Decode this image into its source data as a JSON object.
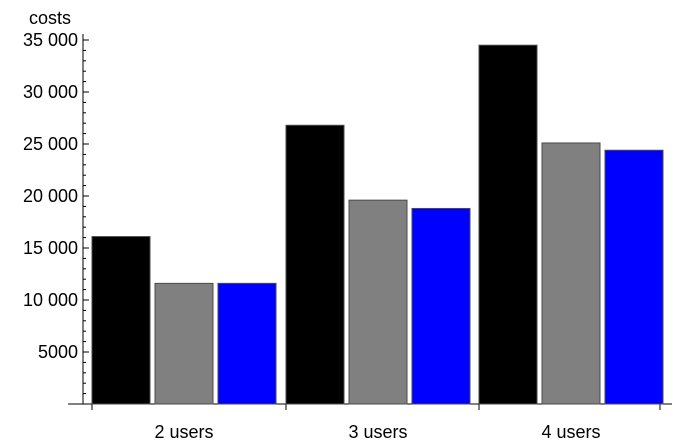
{
  "chart_data": {
    "type": "bar",
    "title": "",
    "xlabel": "",
    "ylabel": "costs",
    "categories": [
      "2 users",
      "3 users",
      "4 users"
    ],
    "series": [
      {
        "color": "#000000",
        "values": [
          16100,
          26800,
          34500
        ]
      },
      {
        "color": "#808080",
        "values": [
          11600,
          19600,
          25100
        ]
      },
      {
        "color": "#0000ff",
        "values": [
          11600,
          18800,
          24400
        ]
      }
    ],
    "ylim": [
      0,
      35000
    ],
    "yticks_major": [
      5000,
      10000,
      15000,
      20000,
      25000,
      30000,
      35000
    ],
    "ytick_labels": [
      "5000",
      "10 000",
      "15 000",
      "20 000",
      "25 000",
      "30 000",
      "35 000"
    ],
    "ytick_minor_step": 1000,
    "grid": false,
    "legend": "none"
  }
}
